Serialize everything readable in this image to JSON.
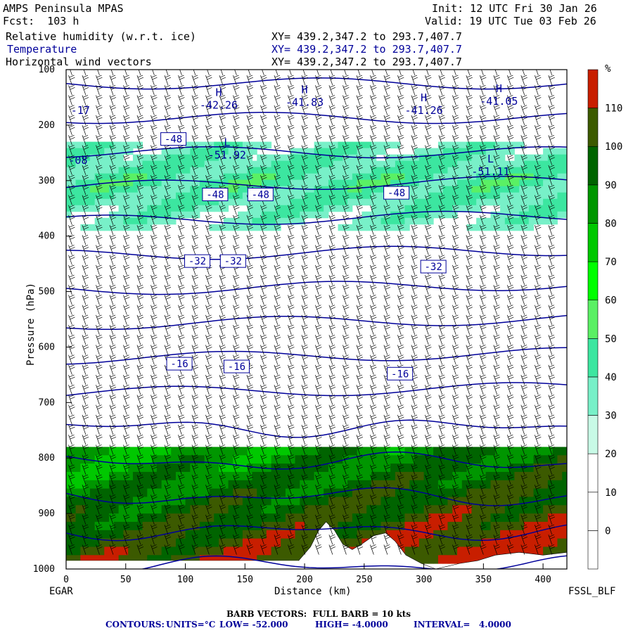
{
  "header": {
    "model": "AMPS Peninsula MPAS",
    "forecast": "Fcst:  103 h",
    "init": "Init: 12 UTC Fri 30 Jan 26",
    "valid": "Valid: 19 UTC Tue 03 Feb 26",
    "fields": [
      {
        "name": "Relative humidity (w.r.t. ice)",
        "xy": "XY= 439.2,347.2 to 293.7,407.7",
        "color": "#000000"
      },
      {
        "name": "Temperature",
        "xy": "XY= 439.2,347.2 to 293.7,407.7",
        "color": "#00009a"
      },
      {
        "name": "Horizontal wind vectors",
        "xy": "XY= 439.2,347.2 to 293.7,407.7",
        "color": "#000000"
      }
    ]
  },
  "chart_data": {
    "type": "cross-section",
    "title": "AMPS Peninsula MPAS",
    "xlabel": "Distance (km)",
    "ylabel": "Pressure (hPa)",
    "xlim": [
      0,
      420
    ],
    "ylim": [
      1000,
      100
    ],
    "x_ticks": [
      0,
      50,
      100,
      150,
      200,
      250,
      300,
      350,
      400
    ],
    "y_ticks": [
      100,
      200,
      300,
      400,
      500,
      600,
      700,
      800,
      900,
      1000
    ],
    "left_endpoint": "EGAR",
    "right_endpoint": "FSSL_BLF",
    "colorbar": {
      "unit": "%",
      "levels": [
        0,
        10,
        20,
        30,
        40,
        50,
        60,
        70,
        80,
        90,
        100,
        110
      ],
      "colors": [
        "#ffffff",
        "#ffffff",
        "#ffffff",
        "#c8fae6",
        "#78f0c8",
        "#3ce6a0",
        "#5af064",
        "#00ff00",
        "#00c800",
        "#009600",
        "#006400",
        "#3c5a00",
        "#c81e00"
      ]
    },
    "rh_bands": [
      {
        "p_top": 230,
        "p_bot": 390,
        "rh": 45
      },
      {
        "p_top": 780,
        "p_bot": 990,
        "rh": 85
      }
    ],
    "temperature_contours": {
      "units": "°C",
      "low": -52.0,
      "high": -4.0,
      "interval": 4.0,
      "labels": [
        {
          "value": "-48",
          "x": 90,
          "p": 225
        },
        {
          "value": "-48",
          "x": 125,
          "p": 325
        },
        {
          "value": "-48",
          "x": 163,
          "p": 325
        },
        {
          "value": "-48",
          "x": 277,
          "p": 322
        },
        {
          "value": "-32",
          "x": 110,
          "p": 445
        },
        {
          "value": "-32",
          "x": 140,
          "p": 445
        },
        {
          "value": "-32",
          "x": 308,
          "p": 455
        },
        {
          "value": "-16",
          "x": 95,
          "p": 630
        },
        {
          "value": "-16",
          "x": 143,
          "p": 635
        },
        {
          "value": "-16",
          "x": 280,
          "p": 648
        }
      ],
      "extrema": [
        {
          "kind": "H",
          "value": "-42.26",
          "x": 128,
          "p": 165
        },
        {
          "kind": "H",
          "value": "-41.83",
          "x": 200,
          "p": 160
        },
        {
          "kind": "H",
          "value": "-41.26",
          "x": 300,
          "p": 175
        },
        {
          "kind": "H",
          "value": "-41.05",
          "x": 363,
          "p": 158
        },
        {
          "kind": "L",
          "value": "-51.92",
          "x": 135,
          "p": 255
        },
        {
          "kind": "L",
          "value": "-51.11",
          "x": 356,
          "p": 285
        }
      ],
      "edge_labels": [
        {
          "value": "-17",
          "x": 12,
          "p": 180
        },
        {
          "value": "-08",
          "x": 10,
          "p": 270
        }
      ]
    },
    "footer": {
      "barb": "BARB VECTORS:  FULL BARB = 10 kts",
      "contours_label": "CONTOURS:",
      "units": "UNITS=°C",
      "low": "LOW= -52.000",
      "high": "HIGH= -4.0000",
      "interval": "INTERVAL=   4.0000"
    }
  }
}
